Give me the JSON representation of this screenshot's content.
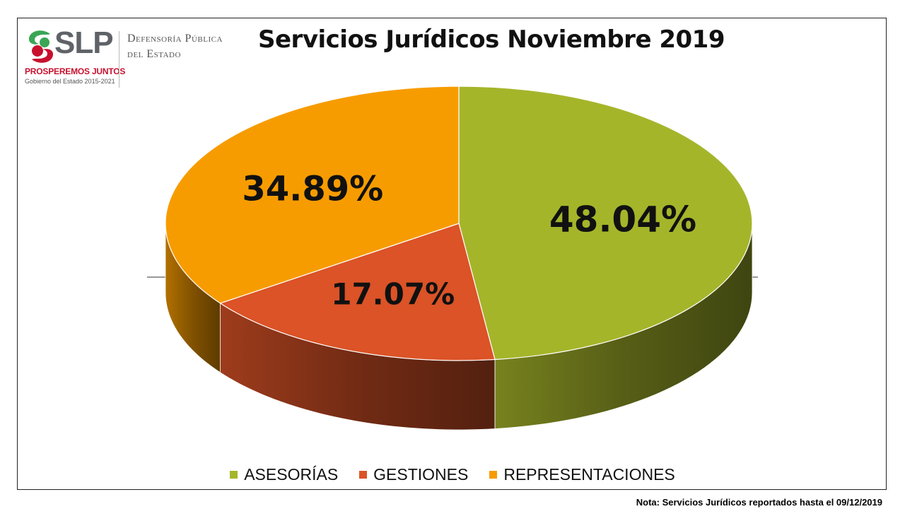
{
  "logo": {
    "brand": "SLP",
    "slogan": "PROSPEREMOS JUNTOS",
    "government": "Gobierno del Estado 2015-2021",
    "org_line1": "Defensoría Pública",
    "org_line2": "del Estado",
    "colors": {
      "green": "#3aa655",
      "red": "#c8102e",
      "grey": "#5f6368"
    }
  },
  "note": "Nota: Servicios Jurídicos reportados hasta el 09/12/2019",
  "chart_data": {
    "type": "pie",
    "title": "Servicios Jurídicos Noviembre 2019",
    "style": "3d",
    "legend_position": "bottom",
    "slices": [
      {
        "name": "ASESORÍAS",
        "value": 48.04,
        "label": "48.04%",
        "color": "#a5b52a"
      },
      {
        "name": "GESTIONES",
        "value": 17.07,
        "label": "17.07%",
        "color": "#db5327"
      },
      {
        "name": "REPRESENTACIONES",
        "value": 34.89,
        "label": "34.89%",
        "color": "#f79c00"
      }
    ]
  }
}
